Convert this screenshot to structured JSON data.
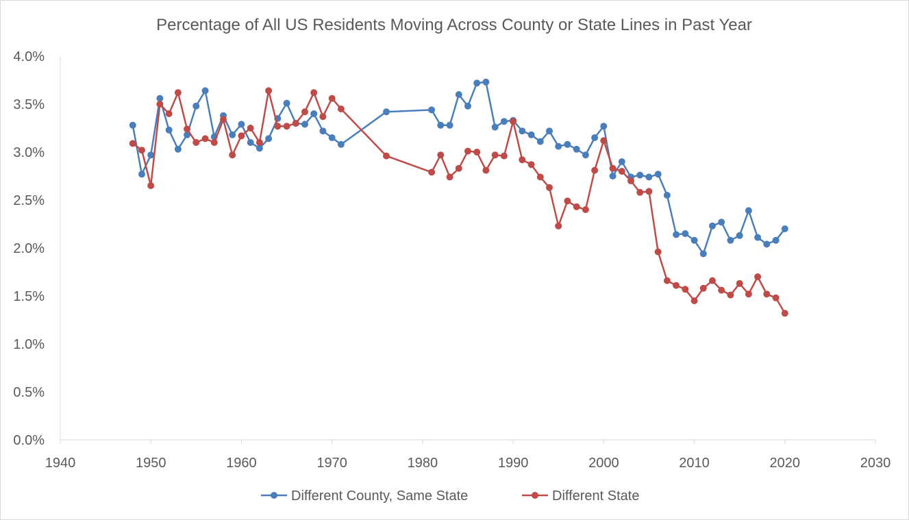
{
  "chart_data": {
    "type": "line",
    "title": "Percentage of All US Residents Moving Across County or State Lines in Past Year",
    "xlabel": "",
    "ylabel": "",
    "xlim": [
      1940,
      2030
    ],
    "ylim": [
      0,
      4.0
    ],
    "x_ticks": [
      "1940",
      "1950",
      "1960",
      "1970",
      "1980",
      "1990",
      "2000",
      "2010",
      "2020",
      "2030"
    ],
    "y_ticks": [
      "0.0%",
      "0.5%",
      "1.0%",
      "1.5%",
      "2.0%",
      "2.5%",
      "3.0%",
      "3.5%",
      "4.0%"
    ],
    "grid": false,
    "legend_position": "bottom",
    "series": [
      {
        "name": "Different County, Same State",
        "color": "#4a7ebb",
        "x": [
          1948,
          1949,
          1950,
          1951,
          1952,
          1953,
          1954,
          1955,
          1956,
          1957,
          1958,
          1959,
          1960,
          1961,
          1962,
          1963,
          1964,
          1965,
          1966,
          1967,
          1968,
          1969,
          1970,
          1971,
          1976,
          1981,
          1982,
          1983,
          1984,
          1985,
          1986,
          1987,
          1988,
          1989,
          1990,
          1991,
          1992,
          1993,
          1994,
          1995,
          1996,
          1997,
          1998,
          1999,
          2000,
          2001,
          2002,
          2003,
          2004,
          2005,
          2006,
          2007,
          2008,
          2009,
          2010,
          2011,
          2012,
          2013,
          2014,
          2015,
          2016,
          2017,
          2018,
          2019,
          2020
        ],
        "values": [
          3.28,
          2.77,
          2.97,
          3.56,
          3.23,
          3.03,
          3.18,
          3.48,
          3.64,
          3.16,
          3.38,
          3.18,
          3.29,
          3.1,
          3.04,
          3.14,
          3.35,
          3.51,
          3.3,
          3.29,
          3.4,
          3.22,
          3.15,
          3.08,
          3.42,
          3.44,
          3.28,
          3.28,
          3.6,
          3.48,
          3.72,
          3.73,
          3.26,
          3.32,
          3.33,
          3.22,
          3.18,
          3.11,
          3.22,
          3.06,
          3.08,
          3.03,
          2.97,
          3.15,
          3.27,
          2.75,
          2.9,
          2.74,
          2.76,
          2.74,
          2.77,
          2.55,
          2.14,
          2.15,
          2.08,
          1.94,
          2.23,
          2.27,
          2.08,
          2.13,
          2.39,
          2.11,
          2.04,
          2.08,
          2.2
        ]
      },
      {
        "name": "Different State",
        "color": "#be4b48",
        "x": [
          1948,
          1949,
          1950,
          1951,
          1952,
          1953,
          1954,
          1955,
          1956,
          1957,
          1958,
          1959,
          1960,
          1961,
          1962,
          1963,
          1964,
          1965,
          1966,
          1967,
          1968,
          1969,
          1970,
          1971,
          1976,
          1981,
          1982,
          1983,
          1984,
          1985,
          1986,
          1987,
          1988,
          1989,
          1990,
          1991,
          1992,
          1993,
          1994,
          1995,
          1996,
          1997,
          1998,
          1999,
          2000,
          2001,
          2002,
          2003,
          2004,
          2005,
          2006,
          2007,
          2008,
          2009,
          2010,
          2011,
          2012,
          2013,
          2014,
          2015,
          2016,
          2017,
          2018,
          2019,
          2020
        ],
        "values": [
          3.09,
          3.02,
          2.65,
          3.5,
          3.4,
          3.62,
          3.24,
          3.1,
          3.14,
          3.1,
          3.34,
          2.97,
          3.17,
          3.25,
          3.1,
          3.64,
          3.27,
          3.27,
          3.3,
          3.42,
          3.62,
          3.37,
          3.56,
          3.45,
          2.96,
          2.79,
          2.97,
          2.74,
          2.83,
          3.01,
          3.0,
          2.81,
          2.97,
          2.96,
          3.32,
          2.92,
          2.87,
          2.74,
          2.63,
          2.23,
          2.49,
          2.43,
          2.4,
          2.81,
          3.12,
          2.83,
          2.8,
          2.7,
          2.58,
          2.59,
          1.96,
          1.66,
          1.61,
          1.57,
          1.45,
          1.58,
          1.66,
          1.56,
          1.51,
          1.63,
          1.52,
          1.7,
          1.52,
          1.48,
          1.32
        ]
      }
    ]
  }
}
